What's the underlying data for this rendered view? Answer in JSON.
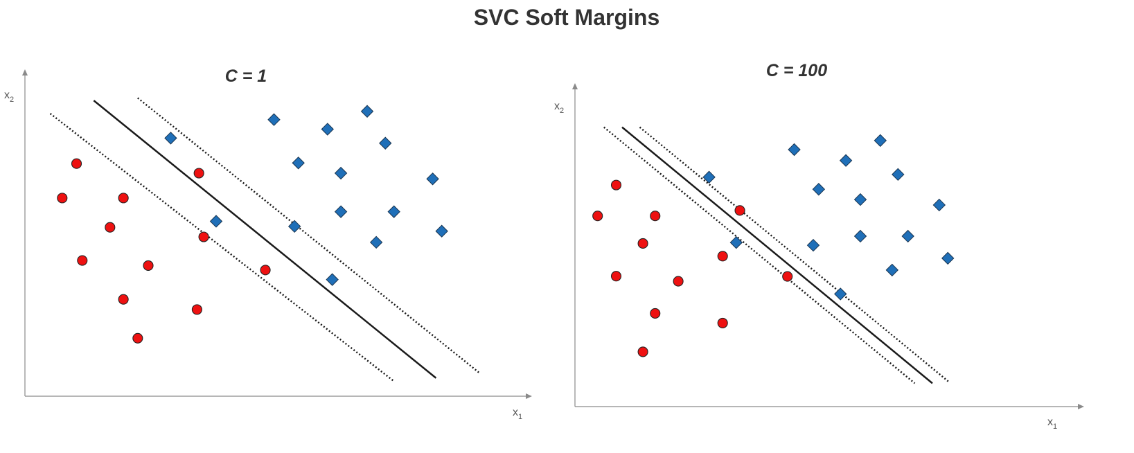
{
  "title": "SVC Soft Margins",
  "colors": {
    "class_circle": "#ee1111",
    "class_diamond": "#1f6fb8",
    "lines": "#1a1a1a",
    "axes": "#8a8a8a"
  },
  "chart_data": [
    {
      "type": "scatter",
      "title": "C = 1",
      "xlabel": "x",
      "xlabel_sub": "1",
      "ylabel": "x",
      "ylabel_sub": "2",
      "xlim": [
        0,
        10
      ],
      "ylim": [
        0,
        10
      ],
      "series": [
        {
          "marker": "circle",
          "color": "#ee1111",
          "points": [
            [
              1.08,
              7.3
            ],
            [
              0.78,
              6.22
            ],
            [
              2.06,
              6.22
            ],
            [
              1.78,
              5.3
            ],
            [
              1.2,
              4.26
            ],
            [
              2.58,
              4.1
            ],
            [
              2.06,
              3.04
            ],
            [
              3.6,
              2.72
            ],
            [
              2.36,
              1.82
            ],
            [
              3.64,
              7.0
            ],
            [
              3.74,
              5.0
            ],
            [
              5.03,
              3.96
            ]
          ]
        },
        {
          "marker": "diamond",
          "color": "#1f6fb8",
          "points": [
            [
              3.05,
              8.1
            ],
            [
              5.21,
              8.68
            ],
            [
              6.33,
              8.38
            ],
            [
              7.16,
              8.94
            ],
            [
              7.54,
              7.94
            ],
            [
              5.72,
              7.32
            ],
            [
              6.61,
              7.0
            ],
            [
              8.53,
              6.82
            ],
            [
              6.61,
              5.79
            ],
            [
              7.72,
              5.79
            ],
            [
              8.72,
              5.18
            ],
            [
              5.64,
              5.33
            ],
            [
              7.35,
              4.83
            ],
            [
              4.0,
              5.49
            ],
            [
              6.43,
              3.66
            ]
          ]
        }
      ],
      "lines": [
        {
          "style": "solid",
          "points": [
            [
              1.44,
              9.28
            ],
            [
              8.6,
              0.57
            ]
          ]
        },
        {
          "style": "dotted",
          "points": [
            [
              0.53,
              8.87
            ],
            [
              7.72,
              0.47
            ]
          ]
        },
        {
          "style": "dotted",
          "points": [
            [
              2.36,
              9.36
            ],
            [
              9.5,
              0.74
            ]
          ]
        }
      ]
    },
    {
      "type": "scatter",
      "title": "C = 100",
      "xlabel": "x",
      "xlabel_sub": "1",
      "ylabel": "x",
      "ylabel_sub": "2",
      "xlim": [
        0,
        10
      ],
      "ylim": [
        0,
        10
      ],
      "series": [
        {
          "marker": "circle",
          "color": "#ee1111",
          "points": [
            [
              0.91,
              7.32
            ],
            [
              0.5,
              6.3
            ],
            [
              1.77,
              6.3
            ],
            [
              1.5,
              5.39
            ],
            [
              0.91,
              4.31
            ],
            [
              2.28,
              4.14
            ],
            [
              1.77,
              3.08
            ],
            [
              3.26,
              4.97
            ],
            [
              3.26,
              2.76
            ],
            [
              1.5,
              1.81
            ],
            [
              3.64,
              6.48
            ],
            [
              4.69,
              4.3
            ]
          ]
        },
        {
          "marker": "diamond",
          "color": "#1f6fb8",
          "points": [
            [
              2.96,
              7.58
            ],
            [
              4.84,
              8.49
            ],
            [
              5.98,
              8.13
            ],
            [
              6.74,
              8.79
            ],
            [
              7.13,
              7.67
            ],
            [
              5.38,
              7.18
            ],
            [
              6.3,
              6.84
            ],
            [
              8.04,
              6.66
            ],
            [
              6.3,
              5.63
            ],
            [
              7.35,
              5.63
            ],
            [
              8.23,
              4.9
            ],
            [
              5.26,
              5.33
            ],
            [
              7.0,
              4.51
            ],
            [
              3.56,
              5.42
            ],
            [
              5.86,
              3.72
            ]
          ]
        }
      ],
      "lines": [
        {
          "style": "solid",
          "points": [
            [
              1.04,
              9.23
            ],
            [
              7.89,
              0.77
            ]
          ]
        },
        {
          "style": "dotted",
          "points": [
            [
              0.64,
              9.23
            ],
            [
              7.5,
              0.77
            ]
          ]
        },
        {
          "style": "dotted",
          "points": [
            [
              1.43,
              9.23
            ],
            [
              8.25,
              0.82
            ]
          ]
        }
      ]
    }
  ]
}
